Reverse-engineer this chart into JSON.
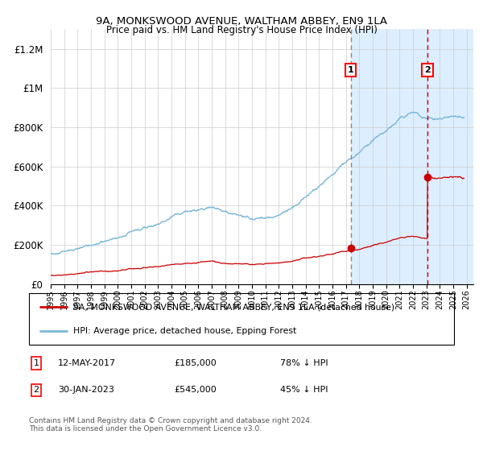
{
  "title1": "9A, MONKSWOOD AVENUE, WALTHAM ABBEY, EN9 1LA",
  "title2": "Price paid vs. HM Land Registry's House Price Index (HPI)",
  "xlim_start": 1995.0,
  "xlim_end": 2026.5,
  "ylim": [
    0,
    1300000
  ],
  "yticks": [
    0,
    200000,
    400000,
    600000,
    800000,
    1000000,
    1200000
  ],
  "ytick_labels": [
    "£0",
    "£200K",
    "£400K",
    "£600K",
    "£800K",
    "£1M",
    "£1.2M"
  ],
  "xticks": [
    1995,
    1996,
    1997,
    1998,
    1999,
    2000,
    2001,
    2002,
    2003,
    2004,
    2005,
    2006,
    2007,
    2008,
    2009,
    2010,
    2011,
    2012,
    2013,
    2014,
    2015,
    2016,
    2017,
    2018,
    2019,
    2020,
    2021,
    2022,
    2023,
    2024,
    2025,
    2026
  ],
  "hpi_color": "#7bb8d8",
  "price_color": "#cc0000",
  "marker_color": "#cc0000",
  "sale1_x": 2017.36,
  "sale1_y": 185000,
  "sale2_x": 2023.08,
  "sale2_y": 545000,
  "bg_shade_start": 2017.36,
  "bg_shade_end": 2026.5,
  "bg_shade_color": "#ddeeff",
  "hatch_start": 2023.08,
  "hatch_end": 2026.5,
  "legend_line1": "9A, MONKSWOOD AVENUE, WALTHAM ABBEY, EN9 1LA (detached house)",
  "legend_line2": "HPI: Average price, detached house, Epping Forest",
  "note1_date": "12-MAY-2017",
  "note1_price": "£185,000",
  "note1_hpi": "78% ↓ HPI",
  "note2_date": "30-JAN-2023",
  "note2_price": "£545,000",
  "note2_hpi": "45% ↓ HPI",
  "footnote": "Contains HM Land Registry data © Crown copyright and database right 2024.\nThis data is licensed under the Open Government Licence v3.0."
}
